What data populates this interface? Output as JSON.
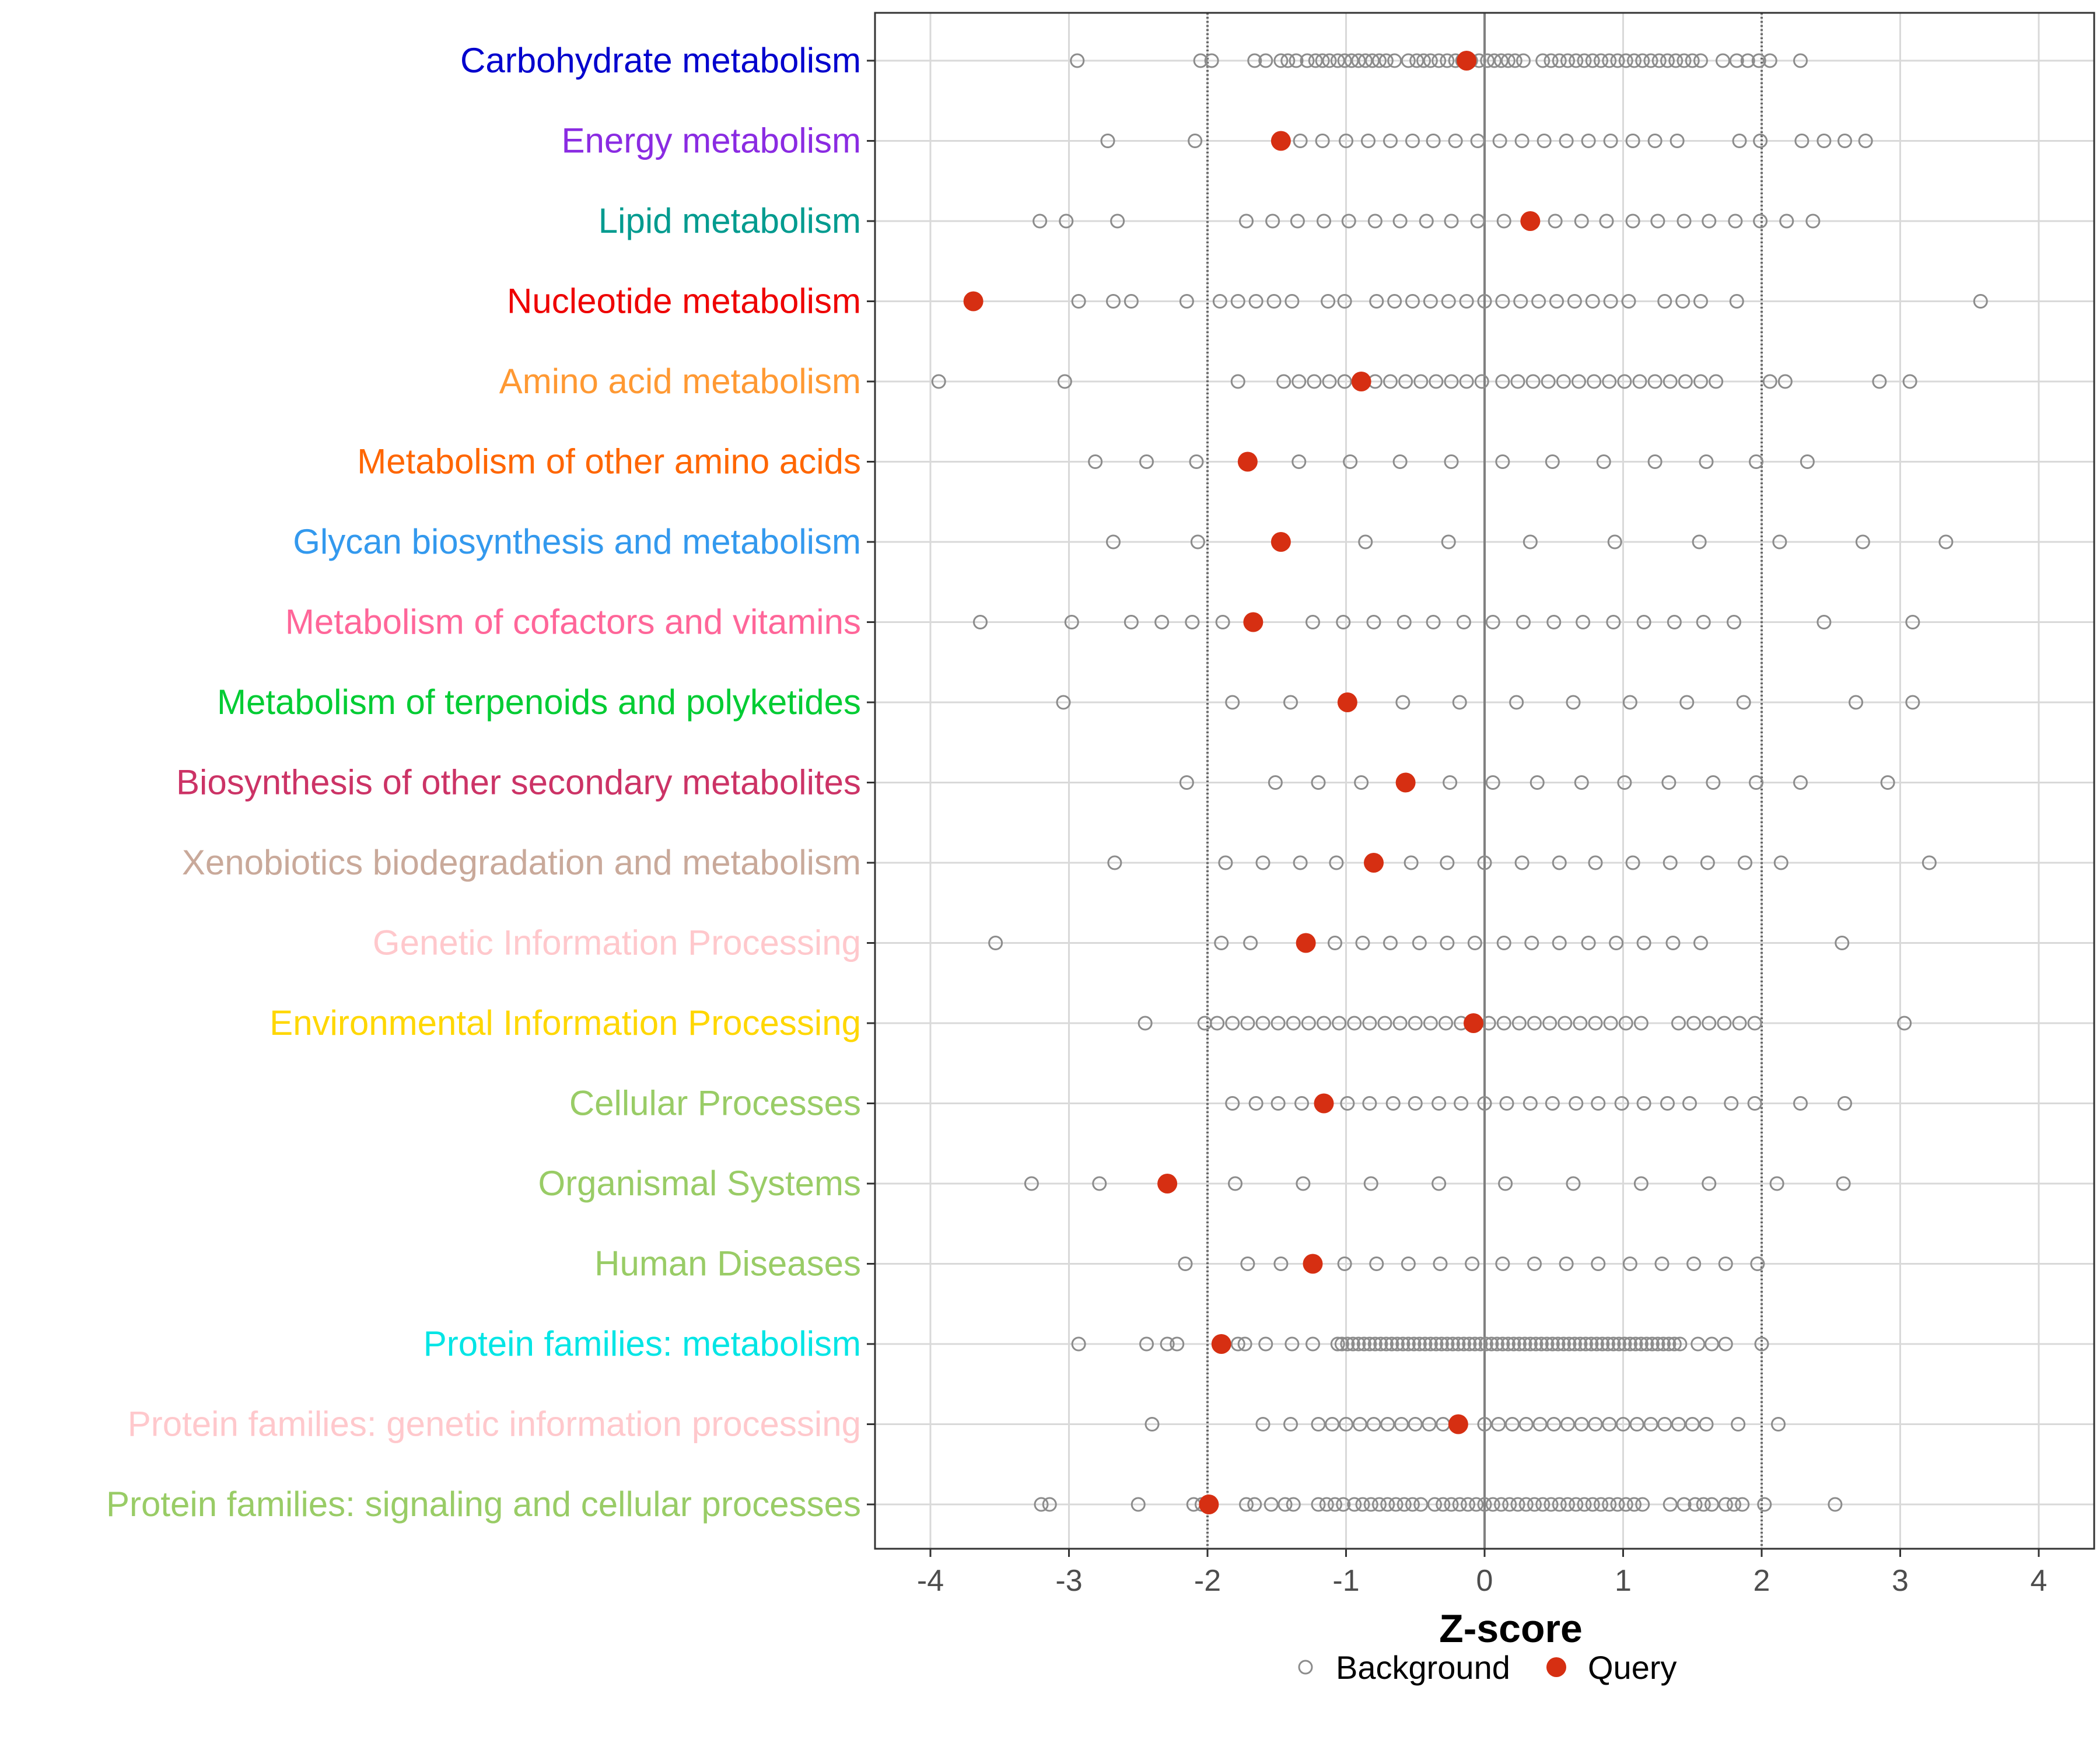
{
  "chart_data": {
    "type": "scatter",
    "xlabel": "Z-score",
    "xlim": [
      -4.4,
      4.4
    ],
    "xticks": [
      -4,
      -3,
      -2,
      -1,
      0,
      1,
      2,
      3,
      4
    ],
    "xtick_labels": [
      "-4",
      "-3",
      "-2",
      "-1",
      "0",
      "1",
      "2",
      "3",
      "4"
    ],
    "reference_lines": [
      -2,
      0,
      2
    ],
    "legend": {
      "position": "bottom",
      "items": [
        {
          "label": "Background",
          "marker": "open-circle",
          "color": "#8c8c8c"
        },
        {
          "label": "Query",
          "marker": "filled-circle",
          "color": "#d62f12"
        }
      ]
    },
    "colors": {
      "background_point": "#8c8c8c",
      "query_point": "#d62f12",
      "grid": "#d9d9d9",
      "reference_line": "#666666",
      "zero_line": "#808080"
    },
    "categories": [
      {
        "label": "Carbohydrate metabolism",
        "color": "#0000cd",
        "query": -0.13,
        "background": [
          -2.94,
          -2.05,
          -1.97,
          -1.66,
          -1.58,
          -1.47,
          -1.42,
          -1.36,
          -1.28,
          -1.22,
          -1.17,
          -1.12,
          -1.06,
          -1.01,
          -0.96,
          -0.91,
          -0.86,
          -0.81,
          -0.76,
          -0.71,
          -0.65,
          -0.55,
          -0.49,
          -0.44,
          -0.39,
          -0.33,
          -0.27,
          -0.21,
          -0.16,
          -0.1,
          -0.04,
          0.02,
          0.07,
          0.12,
          0.17,
          0.22,
          0.28,
          0.42,
          0.48,
          0.54,
          0.6,
          0.66,
          0.72,
          0.78,
          0.84,
          0.9,
          0.96,
          1.02,
          1.08,
          1.14,
          1.2,
          1.26,
          1.32,
          1.38,
          1.44,
          1.5,
          1.56,
          1.72,
          1.82,
          1.9,
          1.98,
          2.06,
          2.28
        ]
      },
      {
        "label": "Energy metabolism",
        "color": "#8a2be2",
        "query": -1.47,
        "background": [
          -2.72,
          -2.09,
          -1.33,
          -1.17,
          -1.0,
          -0.84,
          -0.68,
          -0.52,
          -0.37,
          -0.21,
          -0.05,
          0.11,
          0.27,
          0.43,
          0.59,
          0.75,
          0.91,
          1.07,
          1.23,
          1.39,
          1.84,
          1.99,
          2.29,
          2.45,
          2.6,
          2.75
        ]
      },
      {
        "label": "Lipid metabolism",
        "color": "#009b8f",
        "query": 0.33,
        "background": [
          -3.21,
          -3.02,
          -2.65,
          -1.72,
          -1.53,
          -1.35,
          -1.16,
          -0.98,
          -0.79,
          -0.61,
          -0.42,
          -0.24,
          -0.05,
          0.14,
          0.51,
          0.7,
          0.88,
          1.07,
          1.25,
          1.44,
          1.62,
          1.81,
          1.99,
          2.18,
          2.37
        ]
      },
      {
        "label": "Nucleotide metabolism",
        "color": "#ee0000",
        "query": -3.69,
        "background": [
          -2.93,
          -2.68,
          -2.55,
          -2.15,
          -1.91,
          -1.78,
          -1.65,
          -1.52,
          -1.39,
          -1.13,
          -1.01,
          -0.78,
          -0.65,
          -0.52,
          -0.39,
          -0.26,
          -0.13,
          0.0,
          0.13,
          0.26,
          0.39,
          0.52,
          0.65,
          0.78,
          0.91,
          1.04,
          1.3,
          1.43,
          1.56,
          1.82,
          3.58
        ]
      },
      {
        "label": "Amino acid metabolism",
        "color": "#ff9933",
        "query": -0.89,
        "background": [
          -3.94,
          -3.03,
          -1.78,
          -1.45,
          -1.34,
          -1.23,
          -1.12,
          -1.01,
          -0.79,
          -0.68,
          -0.57,
          -0.46,
          -0.35,
          -0.24,
          -0.13,
          -0.02,
          0.13,
          0.24,
          0.35,
          0.46,
          0.57,
          0.68,
          0.79,
          0.9,
          1.01,
          1.12,
          1.23,
          1.34,
          1.45,
          1.56,
          1.67,
          2.06,
          2.17,
          2.85,
          3.07
        ]
      },
      {
        "label": "Metabolism of other amino acids",
        "color": "#ff6600",
        "query": -1.71,
        "background": [
          -2.81,
          -2.44,
          -2.08,
          -1.34,
          -0.97,
          -0.61,
          -0.24,
          0.13,
          0.49,
          0.86,
          1.23,
          1.6,
          1.96,
          2.33
        ]
      },
      {
        "label": "Glycan biosynthesis and metabolism",
        "color": "#3399ee",
        "query": -1.47,
        "background": [
          -2.68,
          -2.07,
          -0.86,
          -0.26,
          0.33,
          0.94,
          1.55,
          2.13,
          2.73,
          3.33
        ]
      },
      {
        "label": "Metabolism of cofactors and vitamins",
        "color": "#ff6699",
        "query": -1.67,
        "background": [
          -3.64,
          -2.98,
          -2.55,
          -2.33,
          -2.11,
          -1.89,
          -1.24,
          -1.02,
          -0.8,
          -0.58,
          -0.37,
          -0.15,
          0.06,
          0.28,
          0.5,
          0.71,
          0.93,
          1.15,
          1.37,
          1.58,
          1.8,
          2.45,
          3.09
        ]
      },
      {
        "label": "Metabolism of terpenoids and polyketides",
        "color": "#00cc33",
        "query": -0.99,
        "background": [
          -3.04,
          -1.82,
          -1.4,
          -0.59,
          -0.18,
          0.23,
          0.64,
          1.05,
          1.46,
          1.87,
          2.68,
          3.09
        ]
      },
      {
        "label": "Biosynthesis of other secondary metabolites",
        "color": "#cc3366",
        "query": -0.57,
        "background": [
          -2.15,
          -1.51,
          -1.2,
          -0.89,
          -0.25,
          0.06,
          0.38,
          0.7,
          1.01,
          1.33,
          1.65,
          1.96,
          2.28,
          2.91
        ]
      },
      {
        "label": "Xenobiotics biodegradation and metabolism",
        "color": "#c9a99a",
        "query": -0.8,
        "background": [
          -2.67,
          -1.87,
          -1.6,
          -1.33,
          -1.07,
          -0.53,
          -0.27,
          0.0,
          0.27,
          0.54,
          0.8,
          1.07,
          1.34,
          1.61,
          1.88,
          2.14,
          3.21
        ]
      },
      {
        "label": "Genetic Information Processing",
        "color": "#ffc8cc",
        "query": -1.29,
        "background": [
          -3.53,
          -1.9,
          -1.69,
          -1.08,
          -0.88,
          -0.68,
          -0.47,
          -0.27,
          -0.07,
          0.14,
          0.34,
          0.54,
          0.75,
          0.95,
          1.15,
          1.36,
          1.56,
          2.58
        ]
      },
      {
        "label": "Environmental Information Processing",
        "color": "#ffd700",
        "query": -0.08,
        "background": [
          -2.45,
          -2.02,
          -1.93,
          -1.82,
          -1.71,
          -1.6,
          -1.49,
          -1.38,
          -1.27,
          -1.16,
          -1.05,
          -0.94,
          -0.83,
          -0.72,
          -0.61,
          -0.5,
          -0.39,
          -0.28,
          -0.17,
          0.03,
          0.14,
          0.25,
          0.36,
          0.47,
          0.58,
          0.69,
          0.8,
          0.91,
          1.02,
          1.13,
          1.4,
          1.51,
          1.62,
          1.73,
          1.84,
          1.95,
          3.03
        ]
      },
      {
        "label": "Cellular Processes",
        "color": "#99cc66",
        "query": -1.16,
        "background": [
          -1.82,
          -1.65,
          -1.49,
          -1.32,
          -0.99,
          -0.83,
          -0.66,
          -0.5,
          -0.33,
          -0.17,
          0.0,
          0.16,
          0.33,
          0.49,
          0.66,
          0.82,
          0.99,
          1.15,
          1.32,
          1.48,
          1.78,
          1.95,
          2.28,
          2.6
        ]
      },
      {
        "label": "Organismal Systems",
        "color": "#99cc66",
        "query": -2.29,
        "background": [
          -3.27,
          -2.78,
          -1.8,
          -1.31,
          -0.82,
          -0.33,
          0.15,
          0.64,
          1.13,
          1.62,
          2.11,
          2.59
        ]
      },
      {
        "label": "Human Diseases",
        "color": "#99cc66",
        "query": -1.24,
        "background": [
          -2.16,
          -1.71,
          -1.47,
          -1.01,
          -0.78,
          -0.55,
          -0.32,
          -0.09,
          0.13,
          0.36,
          0.59,
          0.82,
          1.05,
          1.28,
          1.51,
          1.74,
          1.97
        ]
      },
      {
        "label": "Protein families: metabolism",
        "color": "#00e5e5",
        "query": -1.9,
        "background": [
          -2.93,
          -2.44,
          -2.29,
          -2.22,
          -1.78,
          -1.73,
          -1.58,
          -1.39,
          -1.24,
          -1.06,
          -1.03,
          -0.99,
          -0.95,
          -0.91,
          -0.87,
          -0.83,
          -0.79,
          -0.75,
          -0.71,
          -0.67,
          -0.63,
          -0.59,
          -0.55,
          -0.51,
          -0.47,
          -0.43,
          -0.39,
          -0.35,
          -0.31,
          -0.27,
          -0.23,
          -0.19,
          -0.15,
          -0.11,
          -0.07,
          -0.03,
          0.01,
          0.05,
          0.09,
          0.13,
          0.17,
          0.21,
          0.25,
          0.29,
          0.33,
          0.37,
          0.41,
          0.45,
          0.49,
          0.53,
          0.57,
          0.61,
          0.65,
          0.69,
          0.73,
          0.77,
          0.81,
          0.85,
          0.89,
          0.93,
          0.97,
          1.01,
          1.05,
          1.09,
          1.13,
          1.17,
          1.21,
          1.25,
          1.29,
          1.33,
          1.37,
          1.41,
          1.54,
          1.64,
          1.74,
          2.0
        ]
      },
      {
        "label": "Protein families: genetic information processing",
        "color": "#ffc8cc",
        "query": -0.19,
        "background": [
          -2.4,
          -1.6,
          -1.4,
          -1.2,
          -1.1,
          -1.0,
          -0.9,
          -0.8,
          -0.7,
          -0.6,
          -0.5,
          -0.4,
          -0.3,
          0.0,
          0.1,
          0.2,
          0.3,
          0.4,
          0.5,
          0.6,
          0.7,
          0.8,
          0.9,
          1.0,
          1.1,
          1.2,
          1.3,
          1.4,
          1.5,
          1.6,
          1.83,
          2.12
        ]
      },
      {
        "label": "Protein families: signaling and cellular processes",
        "color": "#99cc66",
        "query": -1.99,
        "background": [
          -3.2,
          -3.14,
          -2.5,
          -2.1,
          -2.04,
          -1.72,
          -1.66,
          -1.54,
          -1.44,
          -1.38,
          -1.2,
          -1.14,
          -1.08,
          -1.02,
          -0.94,
          -0.88,
          -0.82,
          -0.76,
          -0.7,
          -0.64,
          -0.58,
          -0.52,
          -0.46,
          -0.36,
          -0.3,
          -0.24,
          -0.18,
          -0.12,
          -0.06,
          0.0,
          0.06,
          0.12,
          0.18,
          0.24,
          0.3,
          0.36,
          0.42,
          0.48,
          0.54,
          0.6,
          0.66,
          0.72,
          0.78,
          0.84,
          0.9,
          0.96,
          1.02,
          1.08,
          1.14,
          1.34,
          1.44,
          1.52,
          1.58,
          1.64,
          1.74,
          1.8,
          1.86,
          2.02,
          2.53
        ]
      }
    ]
  }
}
